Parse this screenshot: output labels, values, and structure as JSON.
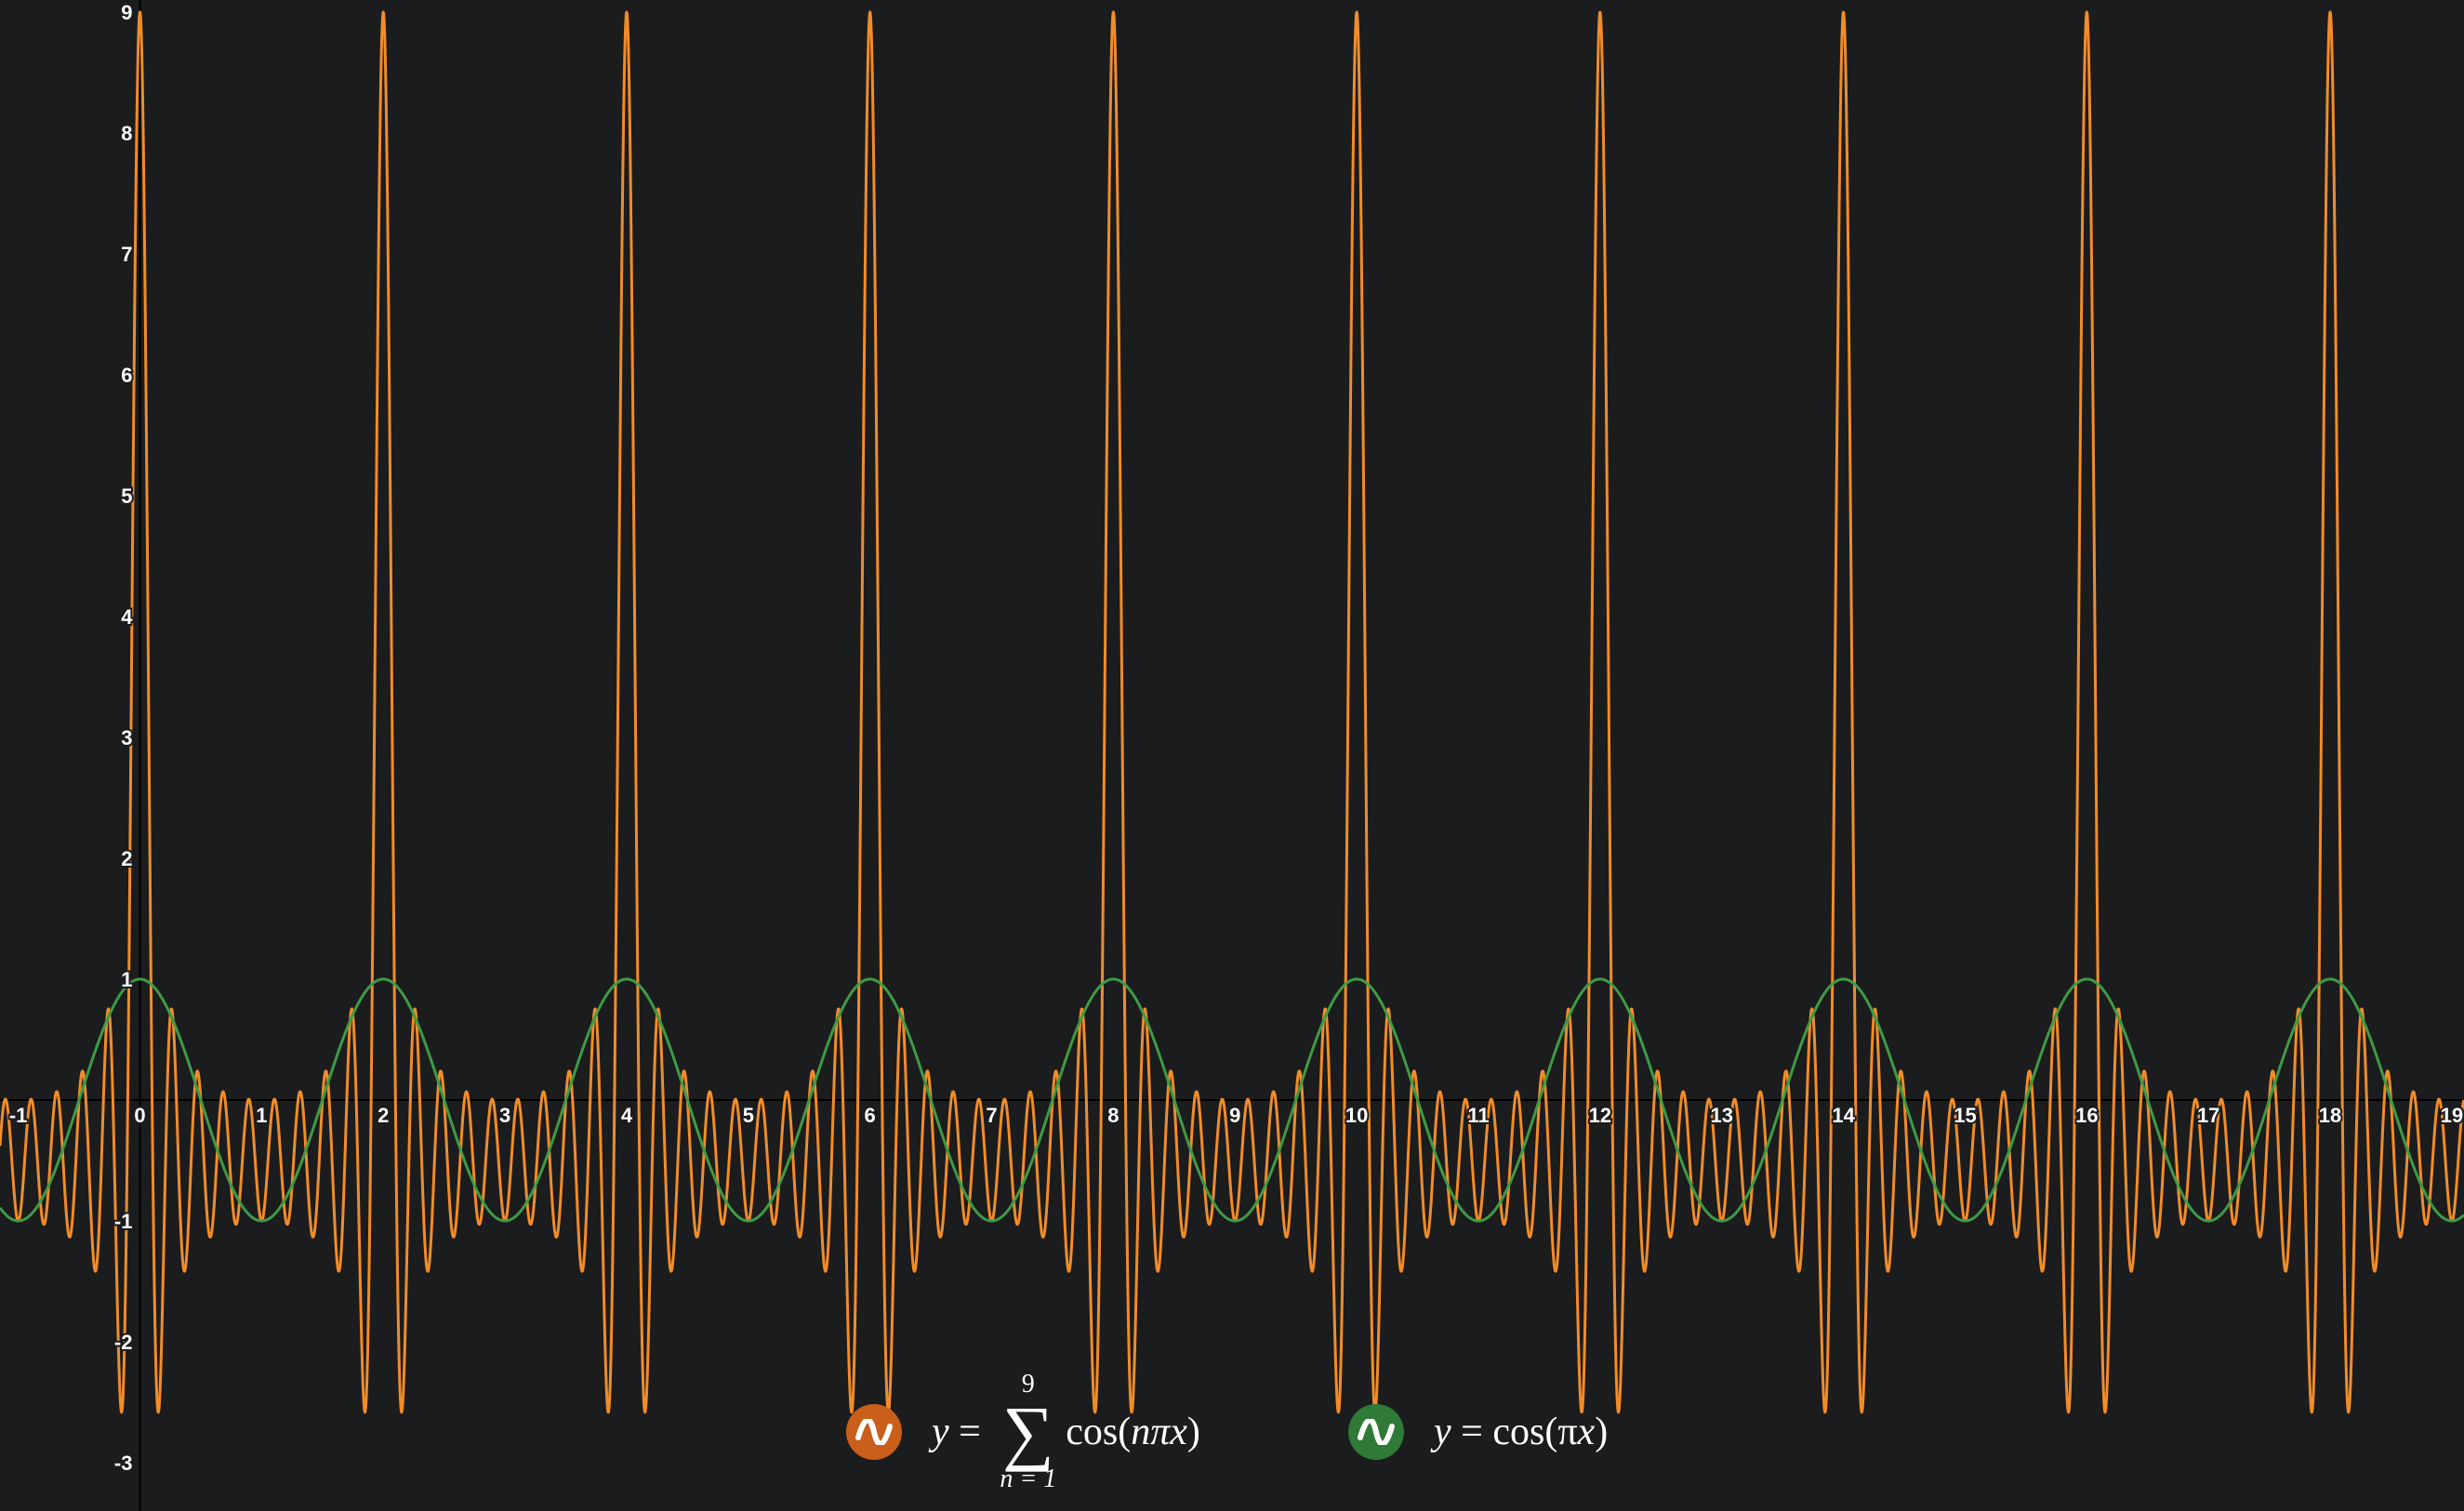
{
  "colors": {
    "background": "#1b1c1e",
    "axis": "#000000",
    "tick_label": "#ffffff"
  },
  "chart_data": {
    "type": "line",
    "title": "",
    "xlabel": "",
    "ylabel": "",
    "xlim": [
      -1.15,
      19.1
    ],
    "ylim": [
      -3.4,
      9.1
    ],
    "grid": false,
    "x_ticks": [
      "-1",
      "0",
      "1",
      "2",
      "3",
      "4",
      "5",
      "6",
      "7",
      "8",
      "9",
      "10",
      "11",
      "12",
      "13",
      "14",
      "15",
      "16",
      "17",
      "18",
      "19"
    ],
    "y_ticks": [
      "-3",
      "-2",
      "-1",
      "1",
      "2",
      "3",
      "4",
      "5",
      "6",
      "7",
      "8",
      "9"
    ],
    "series": [
      {
        "name": "y = Σ_{n=1}^{9} cos(nπx)",
        "color": "#f28c28",
        "badge_color": "#c95f1a",
        "function": "sum_cos",
        "n_terms": 9
      },
      {
        "name": "y = cos(πx)",
        "color": "#3f9a45",
        "badge_color": "#2f7a36",
        "function": "cos"
      }
    ]
  },
  "legend": [
    {
      "icon": "wave-icon",
      "y": "y",
      "eq": "=",
      "sum_upper": "9",
      "sum_lower": "n = 1",
      "sigma": "∑",
      "expr_a": "cos(",
      "expr_var": "nπx",
      "expr_b": ")"
    },
    {
      "icon": "wave-icon",
      "y": "y",
      "eq": "=",
      "expr_a": "cos(π",
      "expr_var": "x",
      "expr_b": ")"
    }
  ]
}
